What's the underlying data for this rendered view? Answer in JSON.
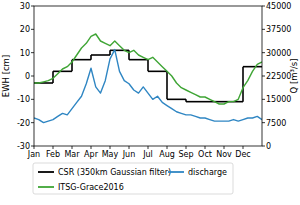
{
  "chart_data": {
    "type": "line",
    "x": [
      0,
      0.25,
      0.5,
      0.75,
      1,
      1.25,
      1.5,
      1.75,
      2,
      2.25,
      2.5,
      2.75,
      3,
      3.25,
      3.5,
      3.75,
      4,
      4.25,
      4.5,
      4.75,
      5,
      5.25,
      5.5,
      5.75,
      6,
      6.25,
      6.5,
      6.75,
      7,
      7.25,
      7.5,
      7.75,
      8,
      8.25,
      8.5,
      8.75,
      9,
      9.25,
      9.5,
      9.75,
      10,
      10.25,
      10.5,
      10.75,
      11,
      11.25,
      11.5,
      11.75,
      12
    ],
    "xlim": [
      0,
      12
    ],
    "xticks": [
      {
        "value": 0,
        "label": "Jan"
      },
      {
        "value": 1,
        "label": "Feb"
      },
      {
        "value": 2,
        "label": "Mar"
      },
      {
        "value": 3,
        "label": "Apr"
      },
      {
        "value": 4,
        "label": "May"
      },
      {
        "value": 5,
        "label": "Jun"
      },
      {
        "value": 6,
        "label": "Jul"
      },
      {
        "value": 7,
        "label": "Aug"
      },
      {
        "value": 8,
        "label": "Sep"
      },
      {
        "value": 9,
        "label": "Oct"
      },
      {
        "value": 10,
        "label": "Nov"
      },
      {
        "value": 11,
        "label": "Dec"
      }
    ],
    "y_label": "EWH [cm]",
    "ylim": [
      -30,
      30
    ],
    "yticks": [
      -30,
      -20,
      -10,
      0,
      10,
      20,
      30
    ],
    "y2_label": "Q [m³/s]",
    "y2lim": [
      0,
      45000
    ],
    "y2ticks": [
      0,
      7500,
      15000,
      22500,
      30000,
      37500,
      45000
    ],
    "legend": "bottom",
    "grid": false,
    "series": [
      {
        "name": "CSR (350km Gaussian filter)",
        "color": "#000000",
        "line_style": "step",
        "x": [
          0,
          1,
          2,
          3,
          4,
          5,
          6,
          7,
          8,
          9,
          10,
          11
        ],
        "values": [
          -3,
          2,
          7,
          9,
          11,
          7,
          2,
          -10,
          -11,
          -11,
          -11,
          4
        ]
      },
      {
        "name": "ITSG-Grace2016",
        "color": "#3fa535",
        "values": [
          -3,
          -3,
          -2.5,
          -2,
          -1,
          1,
          3,
          4,
          6,
          9,
          12,
          14,
          17,
          18,
          15,
          14,
          13,
          15,
          13,
          11,
          10,
          11,
          9,
          8,
          7,
          8,
          6,
          4,
          2,
          0,
          -3,
          -5,
          -6,
          -7,
          -8,
          -9,
          -9,
          -10,
          -11,
          -12,
          -12,
          -11,
          -11,
          -10,
          -5,
          -2,
          2,
          5,
          6
        ]
      },
      {
        "name": "discharge",
        "color": "#2f86c3",
        "axis": "y2",
        "values": [
          9000,
          8500,
          7500,
          8000,
          8500,
          9500,
          10500,
          10000,
          12000,
          14000,
          16000,
          20000,
          25000,
          19000,
          17000,
          21000,
          28000,
          31000,
          24000,
          21000,
          20000,
          18000,
          17000,
          19000,
          17000,
          15000,
          16000,
          14000,
          13000,
          12000,
          11000,
          10500,
          10000,
          10000,
          9500,
          9000,
          9000,
          8500,
          8000,
          8000,
          8000,
          8000,
          8500,
          8000,
          8500,
          9000,
          9000,
          9500,
          8500
        ]
      }
    ]
  }
}
